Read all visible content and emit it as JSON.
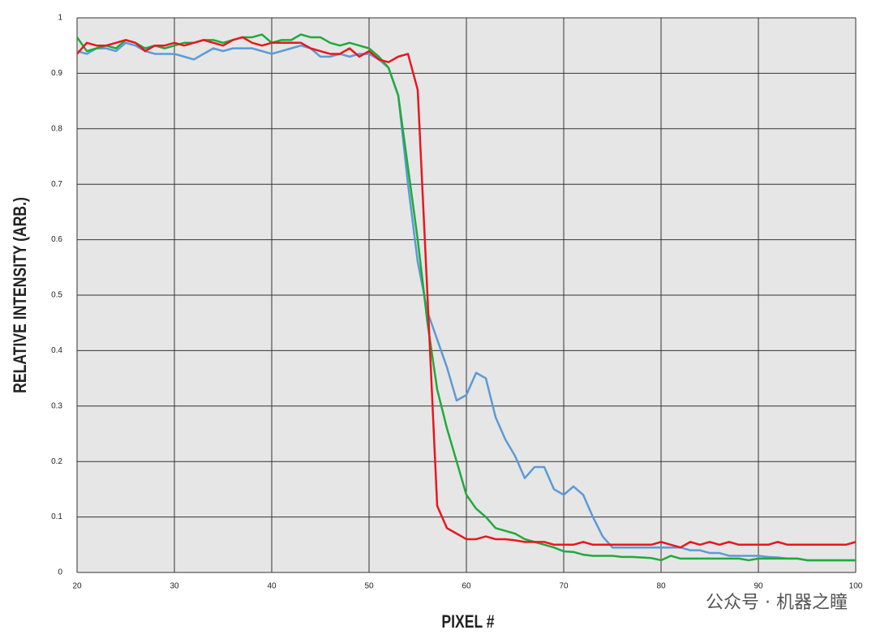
{
  "chart_data": {
    "type": "line",
    "xlabel": "PIXEL #",
    "ylabel": "RELATIVE INTENSITY (ARB.)",
    "watermark": "公众号 · 机器之瞳",
    "x": [
      20,
      21,
      22,
      23,
      24,
      25,
      26,
      27,
      28,
      29,
      30,
      31,
      32,
      33,
      34,
      35,
      36,
      37,
      38,
      39,
      40,
      41,
      42,
      43,
      44,
      45,
      46,
      47,
      48,
      49,
      50,
      51,
      52,
      53,
      54,
      55,
      56,
      57,
      58,
      59,
      60,
      61,
      62,
      63,
      64,
      65,
      66,
      67,
      68,
      69,
      70,
      71,
      72,
      73,
      74,
      75,
      76,
      77,
      78,
      79,
      80,
      81,
      82,
      83,
      84,
      85,
      86,
      87,
      88,
      89,
      90,
      91,
      92,
      93,
      94,
      95,
      96,
      97,
      98,
      99,
      100
    ],
    "series": [
      {
        "color": "#5b9bd5",
        "values": [
          0.94,
          0.935,
          0.945,
          0.945,
          0.94,
          0.955,
          0.95,
          0.94,
          0.935,
          0.935,
          0.935,
          0.93,
          0.925,
          0.935,
          0.945,
          0.94,
          0.945,
          0.945,
          0.945,
          0.94,
          0.935,
          0.94,
          0.945,
          0.95,
          0.945,
          0.93,
          0.93,
          0.935,
          0.93,
          0.935,
          0.935,
          0.925,
          0.91,
          0.86,
          0.7,
          0.56,
          0.47,
          0.42,
          0.37,
          0.31,
          0.32,
          0.36,
          0.35,
          0.28,
          0.24,
          0.21,
          0.17,
          0.19,
          0.19,
          0.15,
          0.14,
          0.155,
          0.14,
          0.1,
          0.065,
          0.045,
          0.045,
          0.045,
          0.045,
          0.045,
          0.045,
          0.045,
          0.045,
          0.04,
          0.04,
          0.035,
          0.035,
          0.03,
          0.03,
          0.03,
          0.03,
          0.028,
          0.027,
          0.025,
          0.025,
          0.022,
          0.022,
          0.022,
          0.022,
          0.022,
          0.022
        ]
      },
      {
        "color": "#1faa3c",
        "values": [
          0.965,
          0.94,
          0.945,
          0.95,
          0.945,
          0.96,
          0.955,
          0.945,
          0.95,
          0.945,
          0.95,
          0.955,
          0.955,
          0.96,
          0.96,
          0.955,
          0.96,
          0.965,
          0.965,
          0.97,
          0.955,
          0.96,
          0.96,
          0.97,
          0.965,
          0.965,
          0.955,
          0.95,
          0.955,
          0.95,
          0.945,
          0.93,
          0.91,
          0.86,
          0.73,
          0.6,
          0.45,
          0.33,
          0.26,
          0.2,
          0.14,
          0.115,
          0.1,
          0.08,
          0.075,
          0.07,
          0.06,
          0.055,
          0.05,
          0.045,
          0.038,
          0.037,
          0.032,
          0.03,
          0.03,
          0.03,
          0.028,
          0.028,
          0.027,
          0.026,
          0.022,
          0.03,
          0.025,
          0.025,
          0.025,
          0.025,
          0.025,
          0.025,
          0.025,
          0.022,
          0.025,
          0.025,
          0.025,
          0.025,
          0.025,
          0.022,
          0.022,
          0.022,
          0.022,
          0.022,
          0.022
        ]
      },
      {
        "color": "#e8171f",
        "values": [
          0.935,
          0.955,
          0.95,
          0.95,
          0.955,
          0.96,
          0.955,
          0.94,
          0.95,
          0.95,
          0.955,
          0.95,
          0.955,
          0.96,
          0.955,
          0.95,
          0.96,
          0.965,
          0.955,
          0.95,
          0.955,
          0.955,
          0.955,
          0.955,
          0.945,
          0.94,
          0.935,
          0.935,
          0.945,
          0.93,
          0.94,
          0.925,
          0.92,
          0.93,
          0.935,
          0.87,
          0.5,
          0.12,
          0.08,
          0.07,
          0.06,
          0.06,
          0.065,
          0.06,
          0.06,
          0.058,
          0.055,
          0.055,
          0.055,
          0.05,
          0.05,
          0.05,
          0.055,
          0.05,
          0.05,
          0.05,
          0.05,
          0.05,
          0.05,
          0.05,
          0.055,
          0.05,
          0.045,
          0.055,
          0.05,
          0.055,
          0.05,
          0.055,
          0.05,
          0.05,
          0.05,
          0.05,
          0.055,
          0.05,
          0.05,
          0.05,
          0.05,
          0.05,
          0.05,
          0.05,
          0.055
        ]
      }
    ],
    "xlim": [
      20,
      100
    ],
    "xticks": [
      20,
      30,
      40,
      50,
      60,
      70,
      80,
      90,
      100
    ],
    "ylim": [
      0,
      1
    ],
    "yticks": [
      0,
      0.1,
      0.2,
      0.3,
      0.4,
      0.5,
      0.6,
      0.7,
      0.8,
      0.9,
      1
    ],
    "grid": true
  }
}
